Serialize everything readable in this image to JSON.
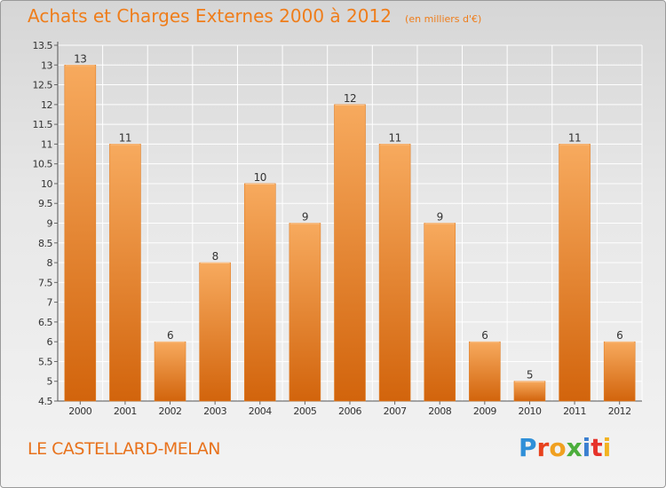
{
  "header": {
    "title": "Achats et Charges Externes 2000 à 2012",
    "subtitle": "(en milliers d'€)"
  },
  "footer": {
    "location": "LE CASTELLARD-MELAN",
    "brand": "Proxiti"
  },
  "colors": {
    "accent": "#ef7d1a",
    "bar_top": "#f5a65a",
    "bar_bottom": "#d4670f",
    "axis": "#555555",
    "grid": "#ffffff"
  },
  "chart_data": {
    "type": "bar",
    "categories": [
      "2000",
      "2001",
      "2002",
      "2003",
      "2004",
      "2005",
      "2006",
      "2007",
      "2008",
      "2009",
      "2010",
      "2011",
      "2012"
    ],
    "values": [
      13,
      11,
      6,
      8,
      10,
      9,
      12,
      11,
      9,
      6,
      5,
      11,
      6
    ],
    "data_labels": [
      "13",
      "11",
      "6",
      "8",
      "10",
      "9",
      "12",
      "11",
      "9",
      "6",
      "5",
      "11",
      "6"
    ],
    "ylim": [
      4.5,
      13.5
    ],
    "yticks": [
      4.5,
      5,
      5.5,
      6,
      6.5,
      7,
      7.5,
      8,
      8.5,
      9,
      9.5,
      10,
      10.5,
      11,
      11.5,
      12,
      12.5,
      13,
      13.5
    ],
    "ytick_labels": [
      "4.5",
      "5",
      "5.5",
      "6",
      "6.5",
      "7",
      "7.5",
      "8",
      "8.5",
      "9",
      "9.5",
      "10",
      "10.5",
      "11",
      "11.5",
      "12",
      "12.5",
      "13",
      "13.5"
    ],
    "grid": true,
    "xlabel": "",
    "ylabel": ""
  }
}
